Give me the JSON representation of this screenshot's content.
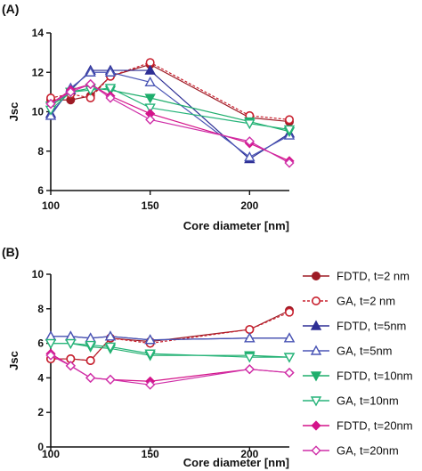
{
  "colors": {
    "fdtd_2": "#9e1b25",
    "ga_2": "#c8202e",
    "fdtd_5": "#2e2f95",
    "ga_5": "#4a55b5",
    "fdtd_10": "#1fae6c",
    "ga_10": "#27b47a",
    "fdtd_20": "#d4148a",
    "ga_20": "#cf2fa8",
    "axis": "#111111"
  },
  "legend": [
    {
      "label": "FDTD, t=2 nm",
      "color": "#9e1b25",
      "marker": "circle",
      "filled": true,
      "dashed": false
    },
    {
      "label": "GA, t=2 nm",
      "color": "#c8202e",
      "marker": "circle",
      "filled": false,
      "dashed": true
    },
    {
      "label": "FDTD, t=5nm",
      "color": "#2e2f95",
      "marker": "triangle-up",
      "filled": true,
      "dashed": false
    },
    {
      "label": "GA, t=5nm",
      "color": "#4a55b5",
      "marker": "triangle-up",
      "filled": false,
      "dashed": false
    },
    {
      "label": "FDTD, t=10nm",
      "color": "#1fae6c",
      "marker": "triangle-down",
      "filled": true,
      "dashed": false
    },
    {
      "label": "GA, t=10nm",
      "color": "#27b47a",
      "marker": "triangle-down",
      "filled": false,
      "dashed": false
    },
    {
      "label": "FDTD, t=20nm",
      "color": "#d4148a",
      "marker": "diamond",
      "filled": true,
      "dashed": false
    },
    {
      "label": "GA, t=20nm",
      "color": "#cf2fa8",
      "marker": "diamond",
      "filled": false,
      "dashed": false
    }
  ],
  "chart_data": [
    {
      "type": "line",
      "panel_label": "(A)",
      "xlabel": "Core diameter [nm]",
      "ylabel": "Jsc",
      "xlim": [
        100,
        220
      ],
      "ylim": [
        6,
        14
      ],
      "xticks": [
        100,
        150,
        200
      ],
      "yticks": [
        6,
        8,
        10,
        12,
        14
      ],
      "grid": false,
      "x": [
        100,
        110,
        120,
        130,
        150,
        200,
        220
      ],
      "series": [
        {
          "name": "FDTD, t=2 nm",
          "values": [
            10.6,
            10.6,
            10.8,
            11.8,
            12.4,
            9.7,
            9.5
          ]
        },
        {
          "name": "GA, t=2 nm",
          "values": [
            10.7,
            10.9,
            10.7,
            11.8,
            12.5,
            9.8,
            9.6
          ]
        },
        {
          "name": "FDTD, t=5nm",
          "values": [
            9.9,
            11.1,
            12.1,
            12.1,
            12.1,
            7.6,
            8.9
          ]
        },
        {
          "name": "GA, t=5nm",
          "values": [
            9.8,
            11.2,
            12.0,
            12.0,
            11.5,
            7.7,
            8.8
          ]
        },
        {
          "name": "FDTD, t=10nm",
          "values": [
            10.3,
            11.0,
            11.2,
            11.1,
            10.7,
            9.5,
            9.0
          ]
        },
        {
          "name": "GA, t=10nm",
          "values": [
            10.1,
            11.0,
            11.1,
            11.2,
            10.2,
            9.4,
            9.1
          ]
        },
        {
          "name": "FDTD, t=20nm",
          "values": [
            10.4,
            11.1,
            11.4,
            10.8,
            9.9,
            8.4,
            7.5
          ]
        },
        {
          "name": "GA, t=20nm",
          "values": [
            10.4,
            11.0,
            11.4,
            10.7,
            9.6,
            8.5,
            7.4
          ]
        }
      ]
    },
    {
      "type": "line",
      "panel_label": "(B)",
      "xlabel": "Core diameter [nm]",
      "ylabel": "Jsc",
      "xlim": [
        100,
        220
      ],
      "ylim": [
        0,
        10
      ],
      "xticks": [
        100,
        150,
        200
      ],
      "yticks": [
        0,
        2,
        4,
        6,
        8,
        10
      ],
      "grid": false,
      "x": [
        100,
        110,
        120,
        130,
        150,
        200,
        220
      ],
      "series": [
        {
          "name": "FDTD, t=2 nm",
          "values": [
            5.1,
            5.1,
            5.0,
            6.3,
            6.1,
            6.8,
            7.9
          ]
        },
        {
          "name": "GA, t=2 nm",
          "values": [
            5.1,
            5.1,
            5.0,
            6.3,
            6.0,
            6.8,
            7.8
          ]
        },
        {
          "name": "FDTD, t=5nm",
          "values": [
            6.4,
            6.4,
            6.3,
            6.4,
            6.2,
            6.3,
            6.3
          ]
        },
        {
          "name": "GA, t=5nm",
          "values": [
            6.4,
            6.4,
            6.3,
            6.4,
            6.2,
            6.3,
            6.3
          ]
        },
        {
          "name": "FDTD, t=10nm",
          "values": [
            6.0,
            6.0,
            5.8,
            5.7,
            5.3,
            5.3,
            5.2
          ]
        },
        {
          "name": "GA, t=10nm",
          "values": [
            6.0,
            6.0,
            5.9,
            5.8,
            5.4,
            5.2,
            5.2
          ]
        },
        {
          "name": "FDTD, t=20nm",
          "values": [
            5.4,
            4.7,
            4.0,
            3.9,
            3.8,
            4.5,
            4.3
          ]
        },
        {
          "name": "GA, t=20nm",
          "values": [
            5.3,
            4.7,
            4.0,
            3.9,
            3.6,
            4.5,
            4.3
          ]
        }
      ]
    }
  ]
}
